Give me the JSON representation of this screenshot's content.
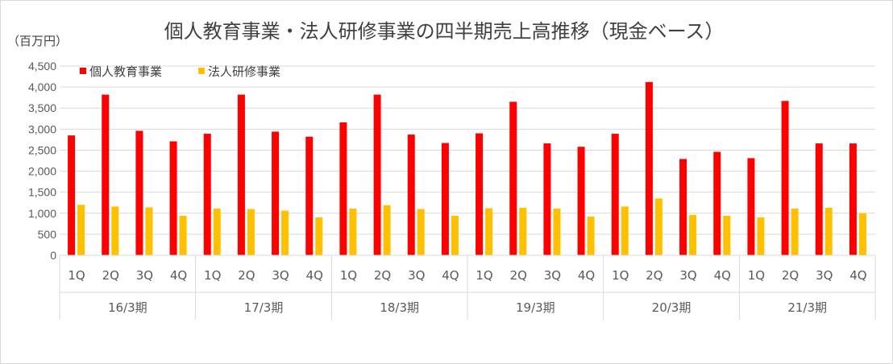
{
  "chart_data": {
    "type": "bar",
    "title": "個人教育事業・法人研修事業の四半期売上高推移（現金ベース）",
    "unit_label": "（百万円）",
    "ylim": [
      0,
      4500
    ],
    "y_ticks": [
      "0",
      "500",
      "1,000",
      "1,500",
      "2,000",
      "2,500",
      "3,000",
      "3,500",
      "4,000",
      "4,500"
    ],
    "grid": true,
    "legend_position": "top-left",
    "quarters": [
      "1Q",
      "2Q",
      "3Q",
      "4Q"
    ],
    "groups": [
      "16/3期",
      "17/3期",
      "18/3期",
      "19/3期",
      "20/3期",
      "21/3期"
    ],
    "categories": [
      "16/3期 1Q",
      "16/3期 2Q",
      "16/3期 3Q",
      "16/3期 4Q",
      "17/3期 1Q",
      "17/3期 2Q",
      "17/3期 3Q",
      "17/3期 4Q",
      "18/3期 1Q",
      "18/3期 2Q",
      "18/3期 3Q",
      "18/3期 4Q",
      "19/3期 1Q",
      "19/3期 2Q",
      "19/3期 3Q",
      "19/3期 4Q",
      "20/3期 1Q",
      "20/3期 2Q",
      "20/3期 3Q",
      "20/3期 4Q",
      "21/3期 1Q",
      "21/3期 2Q",
      "21/3期 3Q",
      "21/3期 4Q"
    ],
    "series": [
      {
        "name": "個人教育事業",
        "color": "#ff0000",
        "values": [
          2850,
          3820,
          2960,
          2710,
          2890,
          3820,
          2940,
          2820,
          3160,
          3820,
          2870,
          2670,
          2900,
          3650,
          2660,
          2580,
          2890,
          4120,
          2290,
          2460,
          2310,
          3670,
          2660,
          2660
        ]
      },
      {
        "name": "法人研修事業",
        "color": "#ffc000",
        "values": [
          1200,
          1160,
          1140,
          940,
          1110,
          1100,
          1060,
          900,
          1110,
          1190,
          1100,
          940,
          1120,
          1130,
          1110,
          920,
          1160,
          1350,
          960,
          940,
          900,
          1110,
          1130,
          1000
        ]
      }
    ]
  }
}
